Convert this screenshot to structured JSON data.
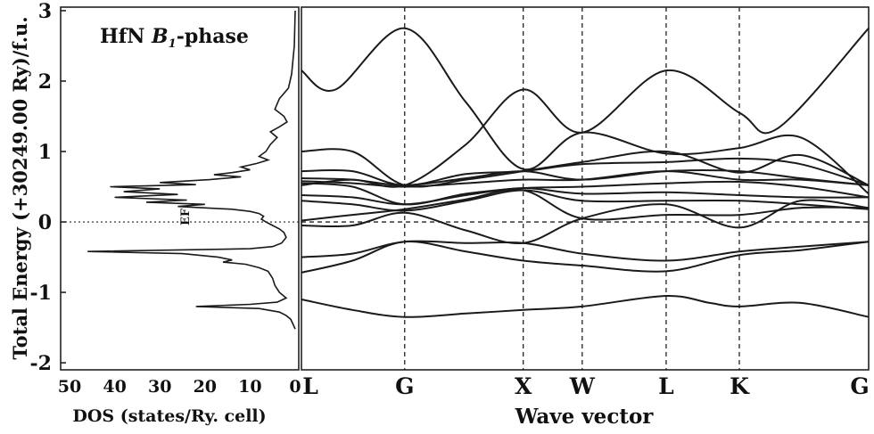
{
  "chart_data": [
    {
      "type": "line",
      "panel": "dos",
      "title": "HfN B1-phase",
      "title_plain": "HfN ",
      "title_italic": "B",
      "title_sub": "1",
      "title_suffix": "-phase",
      "xlabel": "DOS (states/Ry. cell)",
      "ylabel": "Total Energy (+30249.00 Ry)/f.u.",
      "xlim": [
        50,
        0
      ],
      "ylim": [
        -2.1,
        3.05
      ],
      "xticks": [
        "50",
        "40",
        "30",
        "20",
        "10",
        "0"
      ],
      "yticks": [
        "3",
        "2",
        "1",
        "0",
        "-1",
        "-2"
      ],
      "fermi_label": "EF",
      "fermi_level": 0,
      "grid": false,
      "series": [
        {
          "points": [
            [
              0.0,
              3.0
            ],
            [
              0.2,
              2.5
            ],
            [
              0.8,
              2.1
            ],
            [
              1.5,
              1.9
            ],
            [
              3.5,
              1.75
            ],
            [
              4.5,
              1.6
            ],
            [
              2.5,
              1.5
            ],
            [
              1.8,
              1.42
            ],
            [
              3.5,
              1.35
            ],
            [
              5.5,
              1.28
            ],
            [
              4.0,
              1.2
            ],
            [
              5.5,
              1.1
            ],
            [
              6.5,
              1.0
            ],
            [
              8.0,
              0.93
            ],
            [
              6.0,
              0.88
            ],
            [
              8.5,
              0.83
            ],
            [
              12.0,
              0.78
            ],
            [
              10.0,
              0.74
            ],
            [
              14.0,
              0.7
            ],
            [
              18.0,
              0.67
            ],
            [
              12.0,
              0.64
            ],
            [
              19.0,
              0.6
            ],
            [
              30.0,
              0.56
            ],
            [
              22.0,
              0.53
            ],
            [
              41.0,
              0.5
            ],
            [
              30.0,
              0.47
            ],
            [
              38.0,
              0.43
            ],
            [
              26.0,
              0.39
            ],
            [
              40.0,
              0.35
            ],
            [
              24.0,
              0.31
            ],
            [
              33.0,
              0.28
            ],
            [
              20.0,
              0.25
            ],
            [
              26.0,
              0.22
            ],
            [
              14.0,
              0.18
            ],
            [
              10.0,
              0.15
            ],
            [
              8.0,
              0.12
            ],
            [
              7.0,
              0.08
            ],
            [
              7.5,
              0.04
            ],
            [
              6.5,
              0.0
            ],
            [
              5.0,
              -0.05
            ],
            [
              3.5,
              -0.1
            ],
            [
              2.5,
              -0.15
            ],
            [
              2.0,
              -0.22
            ],
            [
              3.0,
              -0.3
            ],
            [
              5.0,
              -0.35
            ],
            [
              10.0,
              -0.38
            ],
            [
              46.0,
              -0.42
            ],
            [
              25.0,
              -0.45
            ],
            [
              17.0,
              -0.5
            ],
            [
              14.0,
              -0.54
            ],
            [
              16.0,
              -0.57
            ],
            [
              11.0,
              -0.6
            ],
            [
              8.0,
              -0.65
            ],
            [
              6.0,
              -0.7
            ],
            [
              5.0,
              -0.8
            ],
            [
              4.5,
              -0.9
            ],
            [
              3.5,
              -1.0
            ],
            [
              2.0,
              -1.08
            ],
            [
              4.0,
              -1.14
            ],
            [
              10.0,
              -1.17
            ],
            [
              22.0,
              -1.2
            ],
            [
              8.0,
              -1.23
            ],
            [
              3.5,
              -1.28
            ],
            [
              2.0,
              -1.33
            ],
            [
              1.0,
              -1.38
            ],
            [
              0.5,
              -1.45
            ],
            [
              0.0,
              -1.52
            ]
          ]
        }
      ]
    },
    {
      "type": "line",
      "panel": "bands",
      "xlabel": "Wave vector",
      "ylim": [
        -2.1,
        3.05
      ],
      "kpoints": [
        {
          "label": "L",
          "x": 0.0
        },
        {
          "label": "G",
          "x": 0.182
        },
        {
          "label": "X",
          "x": 0.391
        },
        {
          "label": "W",
          "x": 0.495
        },
        {
          "label": "L",
          "x": 0.643
        },
        {
          "label": "K",
          "x": 0.772
        },
        {
          "label": "G",
          "x": 1.0
        }
      ],
      "fermi_level": 0,
      "grid": false,
      "series": [
        {
          "points": [
            [
              0,
              -1.1
            ],
            [
              0.09,
              -1.25
            ],
            [
              0.182,
              -1.35
            ],
            [
              0.29,
              -1.3
            ],
            [
              0.391,
              -1.25
            ],
            [
              0.495,
              -1.2
            ],
            [
              0.643,
              -1.05
            ],
            [
              0.72,
              -1.15
            ],
            [
              0.772,
              -1.2
            ],
            [
              0.88,
              -1.15
            ],
            [
              1.0,
              -1.35
            ]
          ]
        },
        {
          "points": [
            [
              0,
              -0.72
            ],
            [
              0.09,
              -0.55
            ],
            [
              0.182,
              -0.28
            ],
            [
              0.29,
              -0.42
            ],
            [
              0.391,
              -0.55
            ],
            [
              0.495,
              -0.62
            ],
            [
              0.643,
              -0.7
            ],
            [
              0.772,
              -0.47
            ],
            [
              0.88,
              -0.4
            ],
            [
              1.0,
              -0.28
            ]
          ]
        },
        {
          "points": [
            [
              0,
              -0.5
            ],
            [
              0.09,
              -0.45
            ],
            [
              0.182,
              -0.28
            ],
            [
              0.29,
              -0.3
            ],
            [
              0.391,
              -0.3
            ],
            [
              0.495,
              -0.45
            ],
            [
              0.643,
              -0.55
            ],
            [
              0.772,
              -0.42
            ],
            [
              0.88,
              -0.35
            ],
            [
              1.0,
              -0.28
            ]
          ]
        },
        {
          "points": [
            [
              0,
              -0.05
            ],
            [
              0.09,
              -0.05
            ],
            [
              0.182,
              0.13
            ],
            [
              0.29,
              -0.12
            ],
            [
              0.391,
              -0.3
            ],
            [
              0.495,
              0.05
            ],
            [
              0.643,
              0.25
            ],
            [
              0.772,
              -0.08
            ],
            [
              0.88,
              0.3
            ],
            [
              1.0,
              0.2
            ]
          ]
        },
        {
          "points": [
            [
              0,
              0.02
            ],
            [
              0.09,
              0.1
            ],
            [
              0.182,
              0.18
            ],
            [
              0.29,
              0.32
            ],
            [
              0.391,
              0.45
            ],
            [
              0.495,
              0.05
            ],
            [
              0.643,
              0.1
            ],
            [
              0.772,
              0.1
            ],
            [
              0.88,
              0.2
            ],
            [
              1.0,
              0.2
            ]
          ]
        },
        {
          "points": [
            [
              0,
              0.3
            ],
            [
              0.09,
              0.25
            ],
            [
              0.182,
              0.16
            ],
            [
              0.29,
              0.3
            ],
            [
              0.391,
              0.45
            ],
            [
              0.495,
              0.3
            ],
            [
              0.643,
              0.3
            ],
            [
              0.772,
              0.3
            ],
            [
              0.88,
              0.25
            ],
            [
              1.0,
              0.18
            ]
          ]
        },
        {
          "points": [
            [
              0,
              0.38
            ],
            [
              0.09,
              0.35
            ],
            [
              0.182,
              0.25
            ],
            [
              0.29,
              0.38
            ],
            [
              0.391,
              0.48
            ],
            [
              0.495,
              0.4
            ],
            [
              0.643,
              0.42
            ],
            [
              0.772,
              0.38
            ],
            [
              0.88,
              0.35
            ],
            [
              1.0,
              0.35
            ]
          ]
        },
        {
          "points": [
            [
              0,
              0.55
            ],
            [
              0.09,
              0.5
            ],
            [
              0.182,
              0.25
            ],
            [
              0.29,
              0.4
            ],
            [
              0.391,
              0.48
            ],
            [
              0.495,
              0.5
            ],
            [
              0.643,
              0.55
            ],
            [
              0.772,
              0.57
            ],
            [
              0.88,
              0.5
            ],
            [
              1.0,
              0.35
            ]
          ]
        },
        {
          "points": [
            [
              0,
              0.58
            ],
            [
              0.09,
              0.55
            ],
            [
              0.182,
              0.5
            ],
            [
              0.29,
              0.55
            ],
            [
              0.391,
              0.6
            ],
            [
              0.495,
              0.6
            ],
            [
              0.643,
              0.72
            ],
            [
              0.772,
              0.6
            ],
            [
              0.88,
              0.6
            ],
            [
              1.0,
              0.52
            ]
          ]
        },
        {
          "points": [
            [
              0,
              0.62
            ],
            [
              0.09,
              0.6
            ],
            [
              0.182,
              0.52
            ],
            [
              0.29,
              0.62
            ],
            [
              0.391,
              0.72
            ],
            [
              0.495,
              0.6
            ],
            [
              0.643,
              0.72
            ],
            [
              0.772,
              0.72
            ],
            [
              0.88,
              0.62
            ],
            [
              1.0,
              0.52
            ]
          ]
        },
        {
          "points": [
            [
              0,
              0.72
            ],
            [
              0.09,
              0.72
            ],
            [
              0.182,
              0.52
            ],
            [
              0.29,
              0.68
            ],
            [
              0.391,
              0.72
            ],
            [
              0.495,
              0.82
            ],
            [
              0.643,
              0.85
            ],
            [
              0.772,
              0.9
            ],
            [
              0.88,
              0.82
            ],
            [
              1.0,
              0.52
            ]
          ]
        },
        {
          "points": [
            [
              0,
              1.0
            ],
            [
              0.09,
              1.0
            ],
            [
              0.182,
              0.52
            ],
            [
              0.29,
              0.6
            ],
            [
              0.391,
              0.72
            ],
            [
              0.495,
              0.85
            ],
            [
              0.643,
              1.0
            ],
            [
              0.772,
              0.7
            ],
            [
              0.88,
              0.95
            ],
            [
              1.0,
              0.52
            ]
          ]
        },
        {
          "points": [
            [
              0,
              2.15
            ],
            [
              0.06,
              1.88
            ],
            [
              0.182,
              2.75
            ],
            [
              0.29,
              1.7
            ],
            [
              0.391,
              0.75
            ],
            [
              0.495,
              1.27
            ],
            [
              0.643,
              0.97
            ],
            [
              0.772,
              1.05
            ],
            [
              0.88,
              1.2
            ],
            [
              1.0,
              0.4
            ]
          ]
        },
        {
          "points": [
            [
              0,
              0.52
            ],
            [
              0.09,
              0.6
            ],
            [
              0.182,
              0.52
            ],
            [
              0.29,
              1.1
            ],
            [
              0.391,
              1.88
            ],
            [
              0.495,
              1.27
            ],
            [
              0.643,
              2.15
            ],
            [
              0.772,
              1.55
            ],
            [
              0.84,
              1.33
            ],
            [
              1.0,
              2.75
            ]
          ]
        }
      ]
    }
  ]
}
